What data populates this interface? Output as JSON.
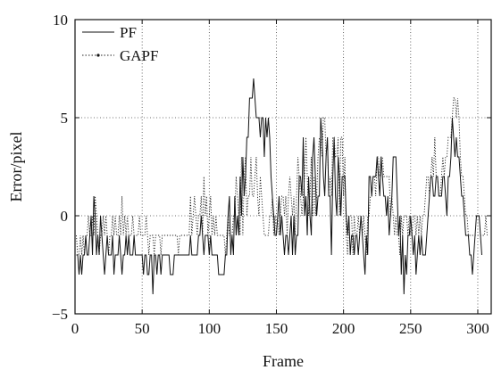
{
  "chart_data": {
    "type": "line",
    "xlabel": "Frame",
    "ylabel": "Error/pixel",
    "xlim": [
      0,
      310
    ],
    "ylim": [
      -5,
      10
    ],
    "xticks": [
      0,
      50,
      100,
      150,
      200,
      250,
      300
    ],
    "yticks": [
      -5,
      0,
      5,
      10
    ],
    "x_tick_labels": [
      "0",
      "50",
      "100",
      "150",
      "200",
      "250",
      "300"
    ],
    "y_tick_labels": [
      "−5",
      "0",
      "5",
      "10"
    ],
    "grid": true,
    "legend": "top-left",
    "x_start": 1,
    "x_step": 1,
    "series": [
      {
        "name": "PF",
        "style": "solid",
        "color": "#111111",
        "values": [
          -2,
          -2,
          -3,
          -2,
          -3,
          -2,
          -2,
          -1,
          -2,
          -2,
          -1,
          0,
          -2,
          1,
          0,
          -2,
          -1,
          -2,
          0,
          -1,
          -2,
          -3,
          -2,
          -1,
          -2,
          -2,
          -2,
          -1,
          -3,
          -2,
          -2,
          -2,
          -1,
          -2,
          -3,
          -2,
          -2,
          -1,
          -2,
          -1,
          -2,
          -2,
          -2,
          -1,
          -2,
          -2,
          -2,
          -2,
          -2,
          -2,
          -3,
          -2,
          -2,
          -3,
          -3,
          -2,
          -2,
          -4,
          -2,
          -2,
          -3,
          -2,
          -2,
          -3,
          -2,
          -2,
          -2,
          -2,
          -2,
          -2,
          -3,
          -3,
          -3,
          -2,
          -2,
          -2,
          -2,
          -2,
          -2,
          -2,
          -2,
          -2,
          -2,
          -2,
          -2,
          -1,
          -2,
          -2,
          -2,
          -2,
          -2,
          -1,
          -1,
          0,
          -1,
          -2,
          -1,
          -1,
          -1,
          -2,
          -1,
          -2,
          -2,
          -2,
          -2,
          -2,
          -3,
          -3,
          -3,
          -3,
          -3,
          -2,
          -2,
          0,
          1,
          -2,
          -1,
          -2,
          1,
          -1,
          0,
          -1,
          2,
          0,
          3,
          1,
          2,
          4,
          4,
          6,
          6,
          6,
          7,
          6,
          5,
          5,
          5,
          4,
          5,
          5,
          3,
          5,
          4,
          5,
          4,
          2,
          1,
          0,
          -1,
          -1,
          0,
          1,
          -1,
          0,
          -1,
          -2,
          -1,
          -1,
          -2,
          -1,
          0,
          -2,
          0,
          -2,
          -1,
          -1,
          2,
          2,
          1,
          4,
          0,
          1,
          -1,
          2,
          0,
          -1,
          3,
          4,
          2,
          0,
          1,
          1,
          5,
          4,
          2,
          1,
          3,
          4,
          1,
          1,
          -2,
          2,
          4,
          1,
          0,
          3,
          2,
          0,
          2,
          2,
          2,
          0,
          -1,
          0,
          -2,
          -1,
          -1,
          -2,
          -1,
          -1,
          -2,
          -1,
          0,
          -1,
          -2,
          -3,
          -1,
          -2,
          2,
          2,
          1,
          2,
          2,
          2,
          3,
          2,
          1,
          3,
          2,
          1,
          1,
          0,
          1,
          -1,
          0,
          1,
          3,
          3,
          3,
          1,
          -1,
          0,
          -3,
          -1,
          -4,
          -2,
          -3,
          -1,
          -1,
          0,
          -1,
          -2,
          -1,
          -3,
          -2,
          -1,
          -2,
          -1,
          -2,
          -2,
          -2,
          -1,
          0,
          1,
          2,
          2,
          1,
          1,
          2,
          2,
          1,
          1,
          1,
          2,
          2,
          1,
          0,
          2,
          2,
          3,
          5,
          4,
          3,
          4,
          3,
          3,
          2,
          1,
          1,
          0,
          -1,
          -1,
          -1,
          -2,
          -2,
          -3,
          -2,
          -1,
          0,
          0,
          0,
          -1,
          -2
        ]
      },
      {
        "name": "GAPF",
        "style": "dotted",
        "color": "#222222",
        "values": [
          -1,
          -2,
          -2,
          -1,
          -2,
          -1,
          -2,
          -1,
          -1,
          0,
          -1,
          -1,
          0,
          -1,
          1,
          0,
          -1,
          -2,
          -1,
          -1,
          0,
          -1,
          0,
          -1,
          -2,
          -1,
          -1,
          0,
          -1,
          0,
          -1,
          -1,
          0,
          -1,
          1,
          -1,
          0,
          -1,
          0,
          -1,
          -1,
          -1,
          0,
          -1,
          -1,
          -1,
          -1,
          0,
          -1,
          -1,
          -1,
          -1,
          0,
          -1,
          -2,
          -1,
          -1,
          -1,
          -2,
          -1,
          -1,
          -1,
          -1,
          -2,
          -1,
          -1,
          -1,
          -1,
          -1,
          -1,
          -1,
          -1,
          -1,
          -1,
          -1,
          -1,
          -2,
          -1,
          -1,
          -1,
          -1,
          -1,
          -1,
          -1,
          -1,
          1,
          -1,
          0,
          1,
          0,
          -1,
          0,
          0,
          1,
          -1,
          2,
          0,
          1,
          -1,
          0,
          1,
          -1,
          0,
          -1,
          0,
          -1,
          -1,
          -1,
          -1,
          -1,
          -1,
          -2,
          -1,
          0,
          -1,
          -1,
          -1,
          0,
          0,
          2,
          1,
          0,
          -1,
          3,
          -1,
          2,
          3,
          0,
          1,
          1,
          3,
          1,
          1,
          2,
          3,
          1,
          0,
          2,
          1,
          0,
          -1,
          -1,
          -1,
          -1,
          0,
          0,
          1,
          -1,
          0,
          -1,
          0,
          -1,
          0,
          1,
          1,
          0,
          1,
          -1,
          1,
          2,
          1,
          0,
          1,
          -1,
          1,
          3,
          2,
          1,
          0,
          1,
          2,
          4,
          2,
          0,
          1,
          3,
          0,
          2,
          0,
          1,
          3,
          4,
          4,
          3,
          5,
          5,
          3,
          4,
          1,
          2,
          1,
          4,
          4,
          3,
          3,
          4,
          0,
          4,
          4,
          1,
          3,
          -1,
          -2,
          0,
          0,
          0,
          -2,
          0,
          -1,
          -1,
          0,
          -1,
          0,
          -1,
          0,
          -1,
          -2,
          0,
          0,
          1,
          1,
          2,
          2,
          1,
          3,
          3,
          2,
          3,
          3,
          2,
          2,
          2,
          2,
          2,
          0,
          1,
          0,
          -1,
          0,
          -1,
          -1,
          -2,
          0,
          -1,
          0,
          0,
          0,
          -1,
          0,
          -1,
          -1,
          0,
          0,
          -1,
          0,
          -1,
          0,
          -1,
          0,
          0,
          1,
          2,
          2,
          1,
          2,
          3,
          2,
          4,
          2,
          2,
          1,
          1,
          2,
          3,
          2,
          3,
          3,
          4,
          4,
          4,
          5,
          6,
          6,
          5,
          6,
          5,
          3,
          2,
          2,
          1,
          0,
          0,
          -1,
          -1,
          -1,
          -1,
          -1,
          -1,
          -1,
          -1,
          -1,
          -1,
          -1,
          -1,
          -1,
          0,
          -1
        ]
      }
    ]
  }
}
